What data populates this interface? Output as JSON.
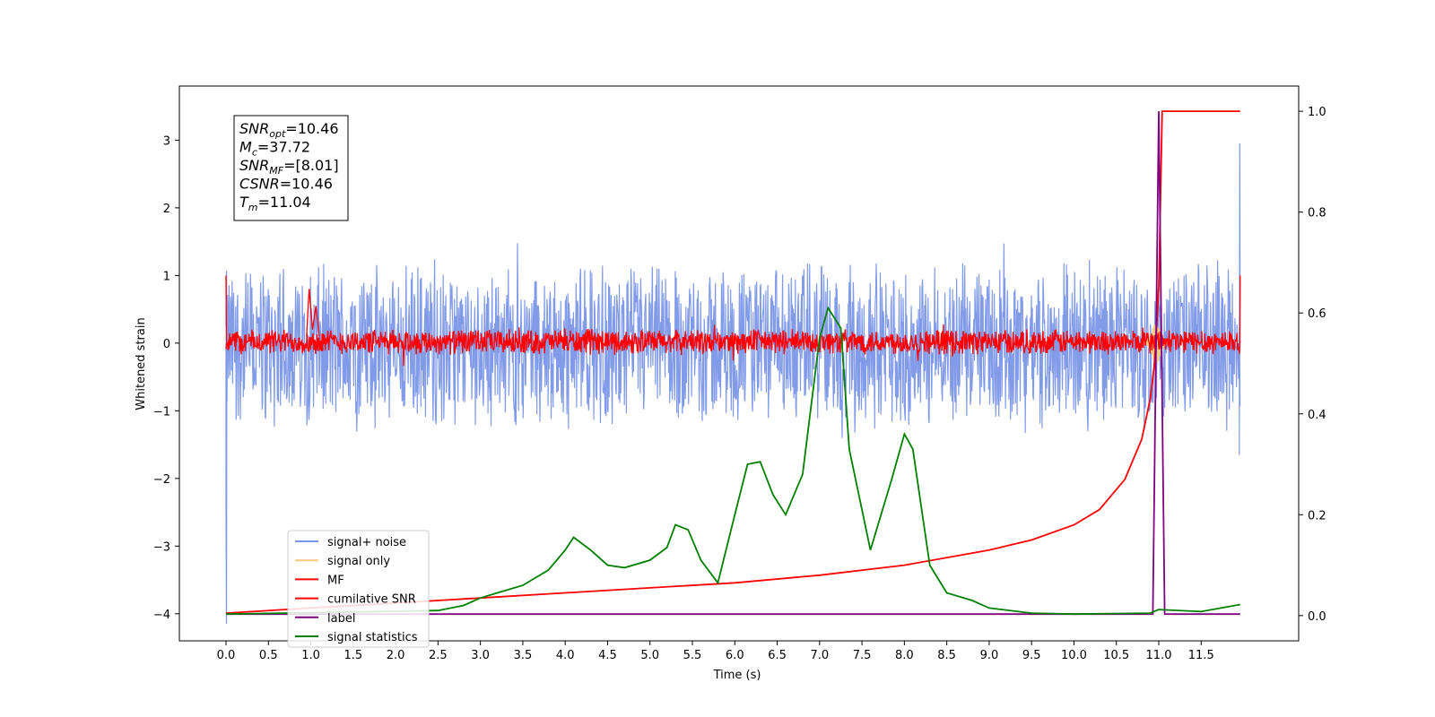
{
  "chart_data": {
    "type": "line",
    "title": "",
    "xlabel": "Time (s)",
    "ylabel": "Whitened strain",
    "xlim": [
      -0.55,
      12.65
    ],
    "ylim": [
      -4.4,
      3.8
    ],
    "ylim_right": [
      -0.05,
      1.05
    ],
    "grid": false,
    "legend_position": "lower-left",
    "x_ticks": [
      "0.0",
      "0.5",
      "1.0",
      "1.5",
      "2.0",
      "2.5",
      "3.0",
      "3.5",
      "4.0",
      "4.5",
      "5.0",
      "5.5",
      "6.0",
      "6.5",
      "7.0",
      "7.5",
      "8.0",
      "8.5",
      "9.0",
      "9.5",
      "10.0",
      "10.5",
      "11.0",
      "11.5"
    ],
    "y_ticks_left": [
      "3",
      "2",
      "1",
      "0",
      "−1",
      "−2",
      "−3",
      "−4"
    ],
    "y_ticks_right": [
      "1.0",
      "0.8",
      "0.6",
      "0.4",
      "0.2",
      "0.0"
    ],
    "annotation": {
      "lines": [
        {
          "base": "SNR",
          "sub": "opt",
          "value": "=10.46"
        },
        {
          "base": "M",
          "sub": "c",
          "value": "=37.72"
        },
        {
          "base": "SNR",
          "sub": "MF",
          "value": "=[8.01]"
        },
        {
          "base": "CSNR",
          "sub": "",
          "value": "=10.46"
        },
        {
          "base": "T",
          "sub": "m",
          "value": "=11.04"
        }
      ]
    },
    "series": [
      {
        "name": "signal+ noise",
        "color": "#7b96e8",
        "axis": "left",
        "style": "noise",
        "center": -0.05,
        "amplitude_range": [
          -1.3,
          1.3
        ],
        "x_range": [
          0,
          11.96
        ]
      },
      {
        "name": "signal only",
        "color": "#f5c97a",
        "axis": "left",
        "style": "chirp",
        "x_range": [
          10.8,
          11.1
        ],
        "peak": 0.3
      },
      {
        "name": "MF",
        "color": "#ff0000",
        "axis": "left",
        "style": "noise",
        "center": 0.02,
        "amplitude_range": [
          -0.15,
          0.25
        ],
        "x_range": [
          0,
          11.96
        ]
      },
      {
        "name": "cumilative SNR",
        "color": "#ff0000",
        "axis": "right",
        "x": [
          0,
          1,
          2,
          3,
          4,
          5,
          6,
          7,
          8,
          9,
          9.5,
          10,
          10.3,
          10.6,
          10.8,
          10.9,
          10.95,
          11.0,
          11.04,
          11.1,
          11.96
        ],
        "y": [
          0.005,
          0.015,
          0.025,
          0.035,
          0.045,
          0.055,
          0.065,
          0.08,
          0.1,
          0.13,
          0.15,
          0.18,
          0.21,
          0.27,
          0.35,
          0.43,
          0.5,
          0.65,
          1.0,
          1.0,
          1.0
        ]
      },
      {
        "name": "label",
        "color": "#800080",
        "axis": "right",
        "x": [
          0,
          10.9,
          10.93,
          11.0,
          11.07,
          11.1,
          11.96
        ],
        "y": [
          0.003,
          0.003,
          0.003,
          1.0,
          0.003,
          0.003,
          0.003
        ]
      },
      {
        "name": "signal statistics",
        "color": "#008000",
        "axis": "right",
        "x": [
          0,
          2.5,
          2.8,
          3.0,
          3.2,
          3.5,
          3.8,
          4.0,
          4.1,
          4.3,
          4.5,
          4.7,
          5.0,
          5.2,
          5.3,
          5.45,
          5.6,
          5.8,
          6.0,
          6.15,
          6.3,
          6.45,
          6.6,
          6.8,
          7.0,
          7.1,
          7.25,
          7.35,
          7.6,
          7.85,
          8.0,
          8.1,
          8.3,
          8.5,
          8.8,
          9.0,
          9.5,
          10.0,
          10.9,
          11.0,
          11.5,
          11.96
        ],
        "y": [
          0.003,
          0.01,
          0.02,
          0.035,
          0.045,
          0.06,
          0.09,
          0.13,
          0.155,
          0.13,
          0.1,
          0.095,
          0.11,
          0.135,
          0.18,
          0.17,
          0.11,
          0.065,
          0.2,
          0.3,
          0.305,
          0.24,
          0.2,
          0.28,
          0.55,
          0.61,
          0.57,
          0.33,
          0.13,
          0.27,
          0.36,
          0.33,
          0.1,
          0.045,
          0.03,
          0.015,
          0.005,
          0.003,
          0.005,
          0.012,
          0.008,
          0.022
        ]
      }
    ]
  }
}
